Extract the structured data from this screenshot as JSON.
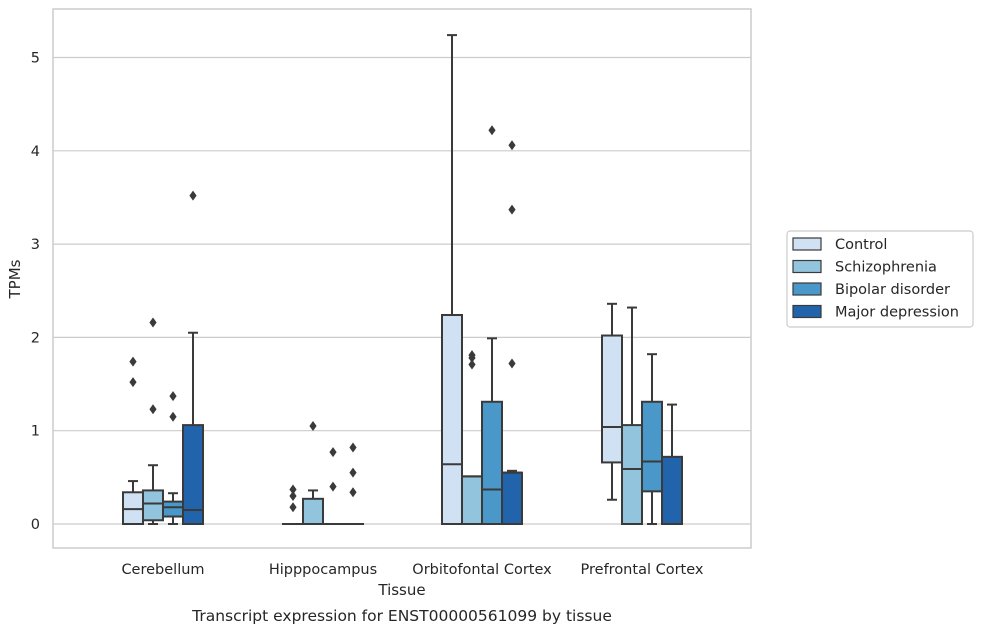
{
  "caption": "Transcript expression for ENST00000561099 by tissue",
  "colors": {
    "Control": "#cfe1f2",
    "Schizophrenia": "#93c4de",
    "Bipolar disorder": "#4a98c9",
    "Major depression": "#2164ab",
    "box_edge": "#3a3a3a",
    "grid": "#cccccc",
    "frame": "#cccccc"
  },
  "chart_data": {
    "type": "box",
    "xlabel": "Tissue",
    "ylabel": "TPMs",
    "ylim": [
      -0.25,
      5.5
    ],
    "yticks": [
      0,
      1,
      2,
      3,
      4,
      5
    ],
    "grid": true,
    "legend_position": "right",
    "categories": [
      "Cerebellum",
      "Hipppocampus",
      "Orbitofontal Cortex",
      "Prefrontal Cortex"
    ],
    "series": [
      {
        "name": "Control",
        "boxes": [
          {
            "whislo": 0,
            "q1": 0,
            "med": 0.16,
            "q3": 0.34,
            "whishi": 0.46,
            "fliers": [
              1.74,
              1.52
            ]
          },
          {
            "whislo": 0,
            "q1": 0,
            "med": 0,
            "q3": 0,
            "whishi": 0,
            "fliers": [
              0.37,
              0.3,
              0.18
            ]
          },
          {
            "whislo": 0,
            "q1": 0,
            "med": 0.64,
            "q3": 2.24,
            "whishi": 5.24,
            "fliers": []
          },
          {
            "whislo": 0.26,
            "q1": 0.66,
            "med": 1.04,
            "q3": 2.02,
            "whishi": 2.36,
            "fliers": []
          }
        ]
      },
      {
        "name": "Schizophrenia",
        "boxes": [
          {
            "whislo": 0,
            "q1": 0.04,
            "med": 0.22,
            "q3": 0.36,
            "whishi": 0.63,
            "fliers": [
              2.16,
              1.23
            ]
          },
          {
            "whislo": 0,
            "q1": 0,
            "med": 0,
            "q3": 0.27,
            "whishi": 0.36,
            "fliers": [
              1.05
            ]
          },
          {
            "whislo": 0,
            "q1": 0,
            "med": 0.51,
            "q3": 0.51,
            "whishi": 0.51,
            "fliers": [
              1.81,
              1.78,
              1.71
            ]
          },
          {
            "whislo": 0,
            "q1": 0,
            "med": 0.59,
            "q3": 1.06,
            "whishi": 2.32,
            "fliers": []
          }
        ]
      },
      {
        "name": "Bipolar disorder",
        "boxes": [
          {
            "whislo": 0,
            "q1": 0.08,
            "med": 0.18,
            "q3": 0.24,
            "whishi": 0.33,
            "fliers": [
              1.37,
              1.15
            ]
          },
          {
            "whislo": 0,
            "q1": 0,
            "med": 0,
            "q3": 0,
            "whishi": 0,
            "fliers": [
              0.77,
              0.4
            ]
          },
          {
            "whislo": 0,
            "q1": 0,
            "med": 0.37,
            "q3": 1.31,
            "whishi": 1.99,
            "fliers": [
              4.22
            ]
          },
          {
            "whislo": 0,
            "q1": 0.35,
            "med": 0.67,
            "q3": 1.31,
            "whishi": 1.82,
            "fliers": []
          }
        ]
      },
      {
        "name": "Major depression",
        "boxes": [
          {
            "whislo": 0,
            "q1": 0,
            "med": 0.15,
            "q3": 1.06,
            "whishi": 2.05,
            "fliers": [
              3.52
            ]
          },
          {
            "whislo": 0,
            "q1": 0,
            "med": 0,
            "q3": 0,
            "whishi": 0,
            "fliers": [
              0.82,
              0.55,
              0.34
            ]
          },
          {
            "whislo": 0,
            "q1": 0,
            "med": 0.55,
            "q3": 0.55,
            "whishi": 0.57,
            "fliers": [
              4.06,
              3.37,
              1.72
            ]
          },
          {
            "whislo": 0,
            "q1": 0,
            "med": 0,
            "q3": 0.72,
            "whishi": 1.28,
            "fliers": []
          }
        ]
      }
    ]
  }
}
